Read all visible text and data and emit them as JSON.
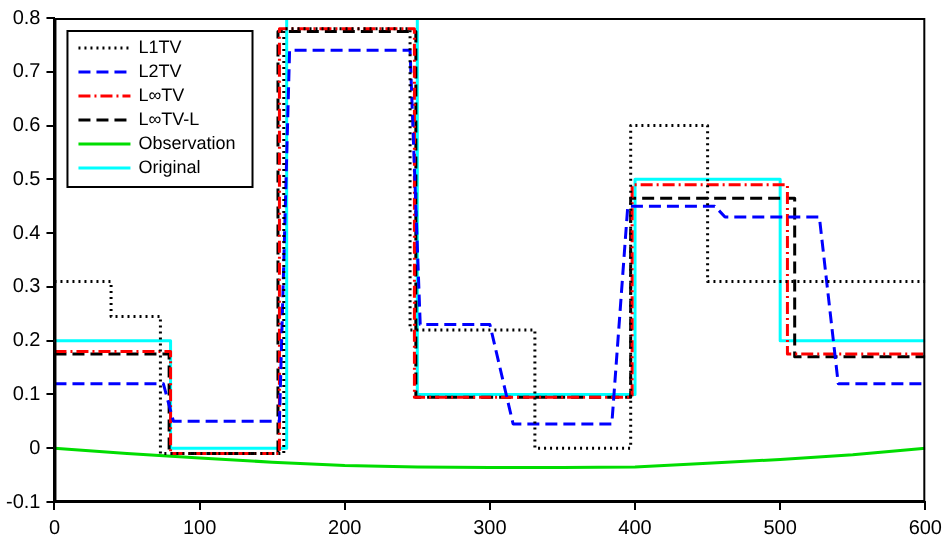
{
  "chart_data": {
    "type": "line",
    "xlim": [
      0,
      600
    ],
    "xticks": [
      0,
      100,
      200,
      300,
      400,
      500,
      600
    ],
    "ylim": [
      -0.1,
      0.8
    ],
    "yticks": [
      -0.1,
      0,
      0.1,
      0.2,
      0.3,
      0.4,
      0.5,
      0.6,
      0.7,
      0.8
    ],
    "grid": false,
    "legend": "top left",
    "marker": "none",
    "series": [
      {
        "name": "L1TV",
        "color": "#000000",
        "line_style": "dotted",
        "x": [
          0,
          39,
          39,
          73,
          73,
          158,
          158,
          245,
          245,
          331,
          331,
          397,
          397,
          450,
          450,
          600
        ],
        "values": [
          0.31,
          0.31,
          0.245,
          0.245,
          -0.01,
          -0.01,
          0.78,
          0.78,
          0.22,
          0.22,
          0.0,
          0.0,
          0.6,
          0.6,
          0.31,
          0.31
        ]
      },
      {
        "name": "L2TV",
        "color": "#0000ff",
        "line_style": "dashed",
        "x": [
          0,
          75,
          82,
          155,
          162,
          245,
          252,
          300,
          316,
          384,
          395,
          455,
          462,
          527,
          540,
          600
        ],
        "values": [
          0.12,
          0.12,
          0.05,
          0.05,
          0.74,
          0.74,
          0.23,
          0.23,
          0.045,
          0.045,
          0.45,
          0.45,
          0.43,
          0.43,
          0.12,
          0.12
        ]
      },
      {
        "name": "L∞TV",
        "color": "#ff0000",
        "line_style": "dashdot",
        "x": [
          0,
          80,
          80,
          155,
          155,
          248,
          248,
          398,
          398,
          505,
          505,
          600
        ],
        "values": [
          0.18,
          0.18,
          -0.01,
          -0.01,
          0.78,
          0.78,
          0.095,
          0.095,
          0.49,
          0.49,
          0.175,
          0.175
        ]
      },
      {
        "name": "L∞TV-L",
        "color": "#000000",
        "line_style": "dashed",
        "x": [
          0,
          79,
          79,
          154,
          154,
          249,
          249,
          397,
          397,
          510,
          510,
          600
        ],
        "values": [
          0.175,
          0.175,
          -0.01,
          -0.01,
          0.775,
          0.775,
          0.095,
          0.095,
          0.465,
          0.465,
          0.17,
          0.17
        ]
      },
      {
        "name": "Observation",
        "color": "#00dd00",
        "line_style": "solid",
        "x": [
          0,
          50,
          100,
          150,
          200,
          250,
          300,
          350,
          400,
          450,
          500,
          550,
          600
        ],
        "values": [
          0.0,
          -0.01,
          -0.018,
          -0.026,
          -0.032,
          -0.035,
          -0.036,
          -0.036,
          -0.035,
          -0.028,
          -0.021,
          -0.012,
          0.0
        ]
      },
      {
        "name": "Original",
        "color": "#00ffff",
        "line_style": "solid",
        "x": [
          0,
          80,
          80,
          160,
          160,
          250,
          250,
          400,
          400,
          500,
          500,
          600
        ],
        "values": [
          0.2,
          0.2,
          0.0,
          0.0,
          0.8,
          0.8,
          0.1,
          0.1,
          0.5,
          0.5,
          0.2,
          0.2
        ]
      }
    ]
  }
}
